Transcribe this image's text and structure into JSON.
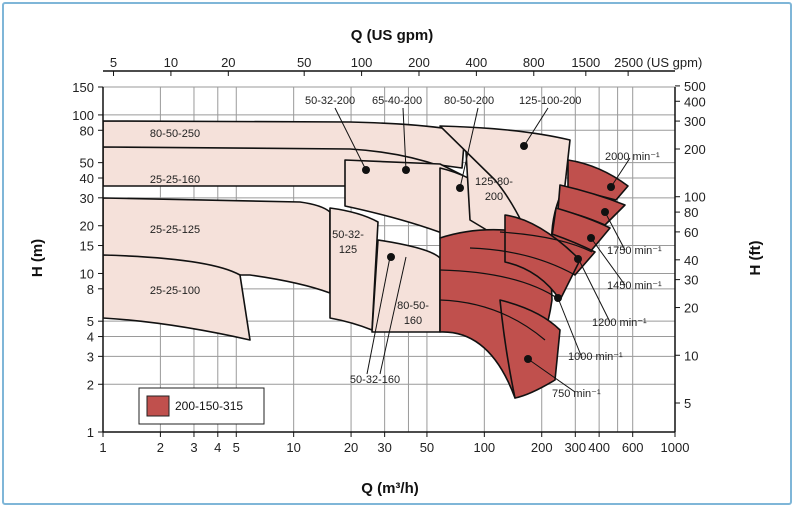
{
  "chart_data": {
    "type": "area",
    "x_axis_bottom": {
      "label": "Q (m³/h)",
      "scale": "log",
      "range": [
        1,
        1000
      ],
      "tick_labels": [
        "1",
        "2",
        "3",
        "4",
        "5",
        "10",
        "20",
        "30",
        "50",
        "100",
        "200",
        "300",
        "400",
        "600",
        "1000"
      ]
    },
    "x_axis_top": {
      "label": "Q (US gpm)",
      "tick_labels": [
        "5",
        "10",
        "20",
        "50",
        "100",
        "200",
        "400",
        "800",
        "1500",
        "2500 (US gpm)"
      ]
    },
    "y_axis_left": {
      "label": "H (m)",
      "scale": "log",
      "range": [
        1,
        150
      ],
      "tick_labels": [
        "1",
        "2",
        "3",
        "4",
        "5",
        "8",
        "10",
        "15",
        "20",
        "30",
        "40",
        "50",
        "80",
        "100",
        "150"
      ]
    },
    "y_axis_right": {
      "label": "H (ft)",
      "tick_labels": [
        "5",
        "10",
        "20",
        "30",
        "40",
        "60",
        "80",
        "100",
        "200",
        "300",
        "400",
        "500"
      ]
    },
    "grid": true,
    "colors": {
      "light_fill": "#f5e1da",
      "dark_fill": "#c0504d",
      "line": "#111111",
      "grid": "#9a9a9a",
      "frame": "#7fb6d8"
    },
    "pump_labels": [
      "80-50-250",
      "25-25-160",
      "25-25-125",
      "25-25-100",
      "50-32-200",
      "65-40-200",
      "80-50-200",
      "125-100-200",
      "125-80-200",
      "50-32-125",
      "80-50-160",
      "50-32-160"
    ],
    "speed_labels": [
      "2000 min⁻¹",
      "1750 min⁻¹",
      "1450 min⁻¹",
      "1200 min⁻¹",
      "1000 min⁻¹",
      "750 min⁻¹"
    ],
    "legend": {
      "label": "200-150-315",
      "placement": "bottom-left"
    }
  }
}
